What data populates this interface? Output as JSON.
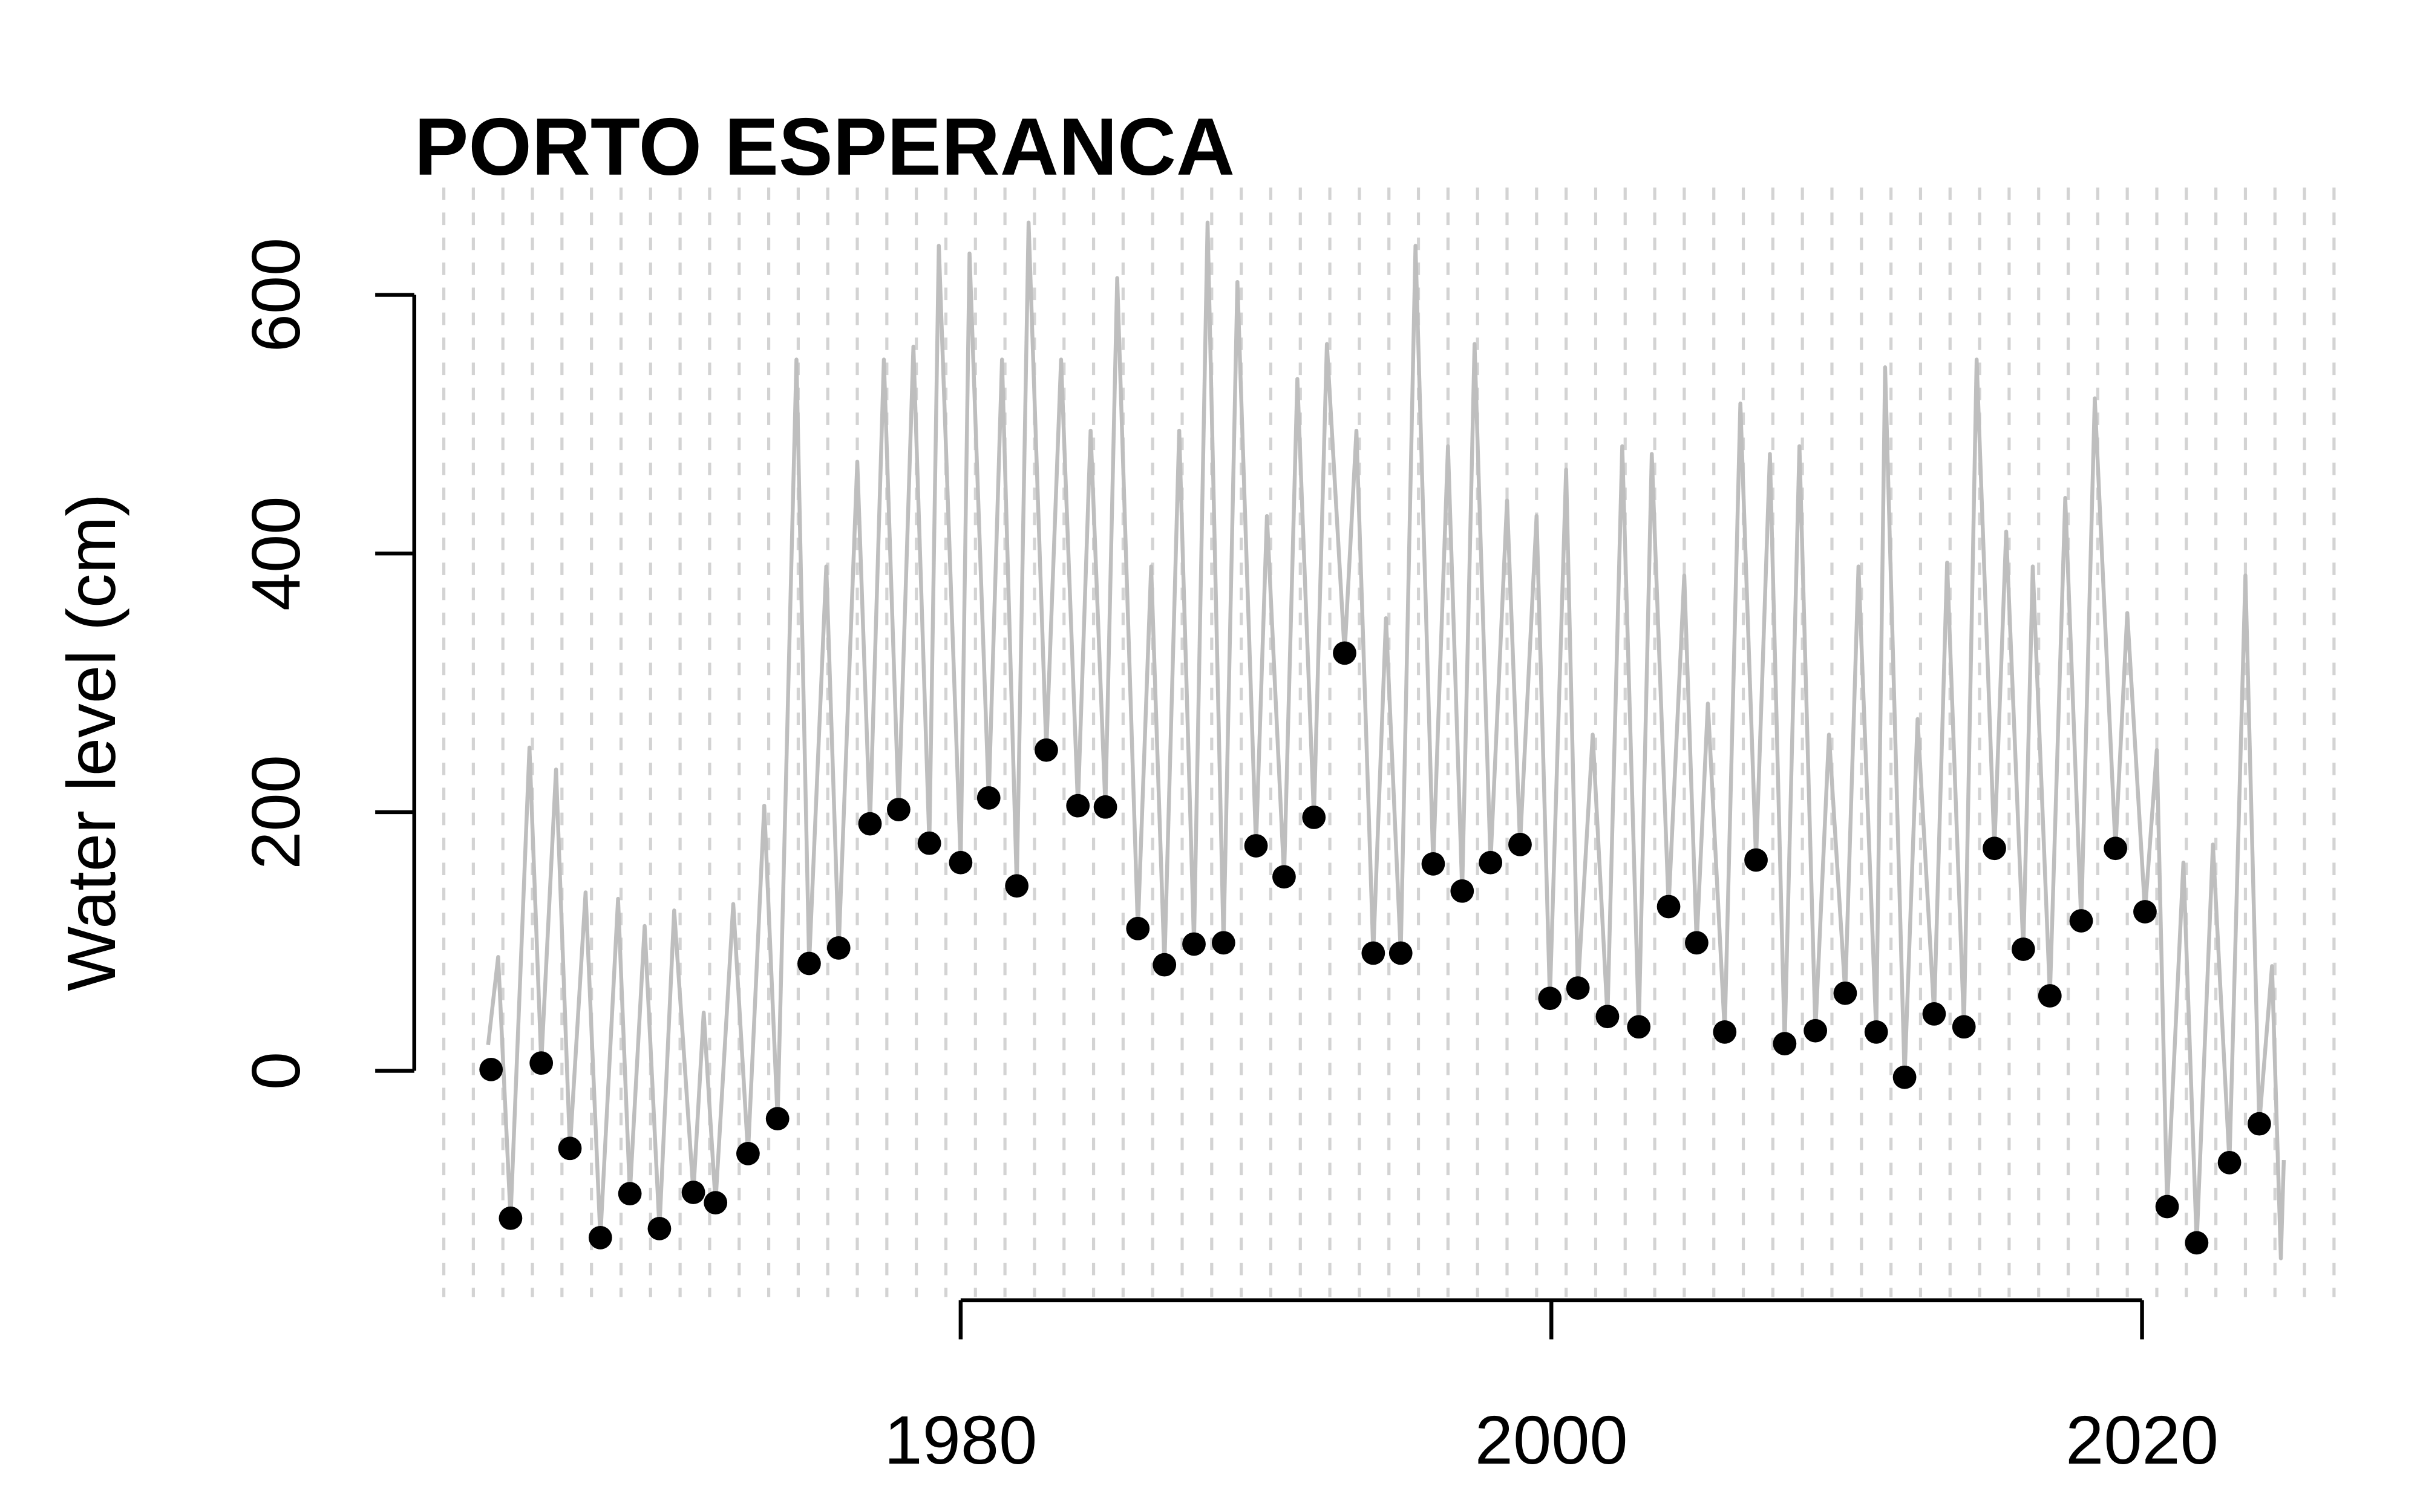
{
  "chart_data": {
    "type": "line",
    "title": "PORTO ESPERANCA",
    "ylabel": "Water level (cm)",
    "xlim": [
      1961.5,
      2026.5
    ],
    "ylim": [
      -175,
      683
    ],
    "xticks": [
      1980,
      2000,
      2020
    ],
    "yticks": [
      0,
      200,
      400,
      600
    ],
    "xgrid": {
      "from": 1962.5,
      "step": 1,
      "color": "#d3d3d3"
    },
    "series": [
      {
        "type": "line",
        "color": "#bebebe",
        "x": [
          1964.0,
          1964.34,
          1964.76,
          1965.4,
          1965.8,
          1966.3,
          1966.77,
          1967.3,
          1967.8,
          1968.4,
          1968.8,
          1969.3,
          1969.8,
          1970.3,
          1970.95,
          1971.3,
          1971.7,
          1972.3,
          1972.8,
          1973.35,
          1973.8,
          1974.44,
          1974.87,
          1975.45,
          1975.87,
          1976.5,
          1976.93,
          1977.4,
          1977.9,
          1978.4,
          1978.94,
          1979.26,
          1980.0,
          1980.3,
          1980.95,
          1981.4,
          1981.9,
          1982.3,
          1982.9,
          1983.4,
          1983.97,
          1984.4,
          1984.9,
          1985.3,
          1986.0,
          1986.45,
          1986.9,
          1987.4,
          1987.9,
          1988.36,
          1988.9,
          1989.37,
          1990.0,
          1990.37,
          1990.95,
          1991.4,
          1991.96,
          1992.4,
          1993.0,
          1993.4,
          1993.97,
          1994.4,
          1994.9,
          1995.4,
          1996.0,
          1996.5,
          1996.98,
          1997.4,
          1997.94,
          1998.5,
          1998.94,
          1999.5,
          1999.95,
          2000.5,
          2000.9,
          2001.4,
          2001.9,
          2002.4,
          2002.96,
          2003.4,
          2003.97,
          2004.5,
          2004.92,
          2005.3,
          2005.87,
          2006.4,
          2006.93,
          2007.4,
          2007.9,
          2008.4,
          2008.94,
          2009.4,
          2009.95,
          2010.4,
          2011.0,
          2011.3,
          2011.96,
          2012.4,
          2012.96,
          2013.4,
          2013.97,
          2014.4,
          2015.0,
          2015.4,
          2015.98,
          2016.3,
          2016.88,
          2017.4,
          2017.94,
          2018.4,
          2019.1,
          2019.5,
          2020.1,
          2020.5,
          2020.85,
          2021.4,
          2021.85,
          2022.4,
          2022.96,
          2023.5,
          2023.97,
          2024.4,
          2024.7,
          2024.8
        ],
        "values": [
          20,
          88,
          -114,
          250,
          6,
          233,
          -60,
          138,
          -129,
          133,
          -95,
          112,
          -122,
          124,
          -94,
          45,
          -102,
          129,
          -64,
          205,
          -37,
          550,
          83,
          390,
          95,
          471,
          191,
          550,
          202,
          560,
          176,
          638,
          161,
          632,
          211,
          550,
          143,
          656,
          248,
          550,
          205,
          495,
          204,
          613,
          110,
          390,
          82,
          495,
          98,
          656,
          99,
          610,
          174,
          429,
          150,
          535,
          196,
          562,
          323,
          495,
          91,
          350,
          91,
          638,
          160,
          483,
          139,
          562,
          161,
          441,
          175,
          429,
          56,
          465,
          64,
          260,
          42,
          483,
          34,
          477,
          127,
          383,
          99,
          284,
          30,
          516,
          163,
          477,
          21,
          483,
          31,
          260,
          60,
          390,
          30,
          544,
          -5,
          272,
          44,
          393,
          34,
          550,
          172,
          417,
          94,
          390,
          58,
          443,
          116,
          520,
          172,
          354,
          123,
          248,
          -105,
          161,
          -133,
          175,
          -71,
          383,
          -41,
          81,
          -145,
          -69
        ]
      },
      {
        "type": "scatter",
        "color": "#000000",
        "x": [
          1964.1,
          1964.76,
          1965.8,
          1966.77,
          1967.8,
          1968.8,
          1969.8,
          1970.95,
          1971.7,
          1972.8,
          1973.8,
          1974.87,
          1975.87,
          1976.93,
          1977.9,
          1978.94,
          1980.0,
          1980.95,
          1981.9,
          1982.9,
          1983.97,
          1984.9,
          1986.0,
          1986.9,
          1987.9,
          1988.9,
          1990.0,
          1990.95,
          1991.96,
          1993.0,
          1993.97,
          1994.9,
          1996.0,
          1996.98,
          1997.94,
          1998.94,
          1999.95,
          2000.9,
          2001.9,
          2002.96,
          2003.97,
          2004.92,
          2005.87,
          2006.93,
          2007.9,
          2008.94,
          2009.95,
          2011.0,
          2011.96,
          2012.96,
          2013.97,
          2015.0,
          2015.98,
          2016.88,
          2017.94,
          2019.1,
          2020.1,
          2020.85,
          2021.85,
          2022.96,
          2023.97
        ],
        "values": [
          1,
          -114,
          6,
          -60,
          -129,
          -95,
          -122,
          -94,
          -102,
          -64,
          -37,
          83,
          95,
          191,
          202,
          176,
          161,
          211,
          143,
          248,
          205,
          204,
          110,
          82,
          98,
          99,
          174,
          150,
          196,
          323,
          91,
          91,
          160,
          139,
          161,
          175,
          56,
          64,
          42,
          34,
          127,
          99,
          30,
          163,
          21,
          31,
          60,
          30,
          -5,
          44,
          34,
          172,
          94,
          58,
          116,
          172,
          123,
          -105,
          -133,
          -71,
          -41
        ]
      }
    ]
  }
}
